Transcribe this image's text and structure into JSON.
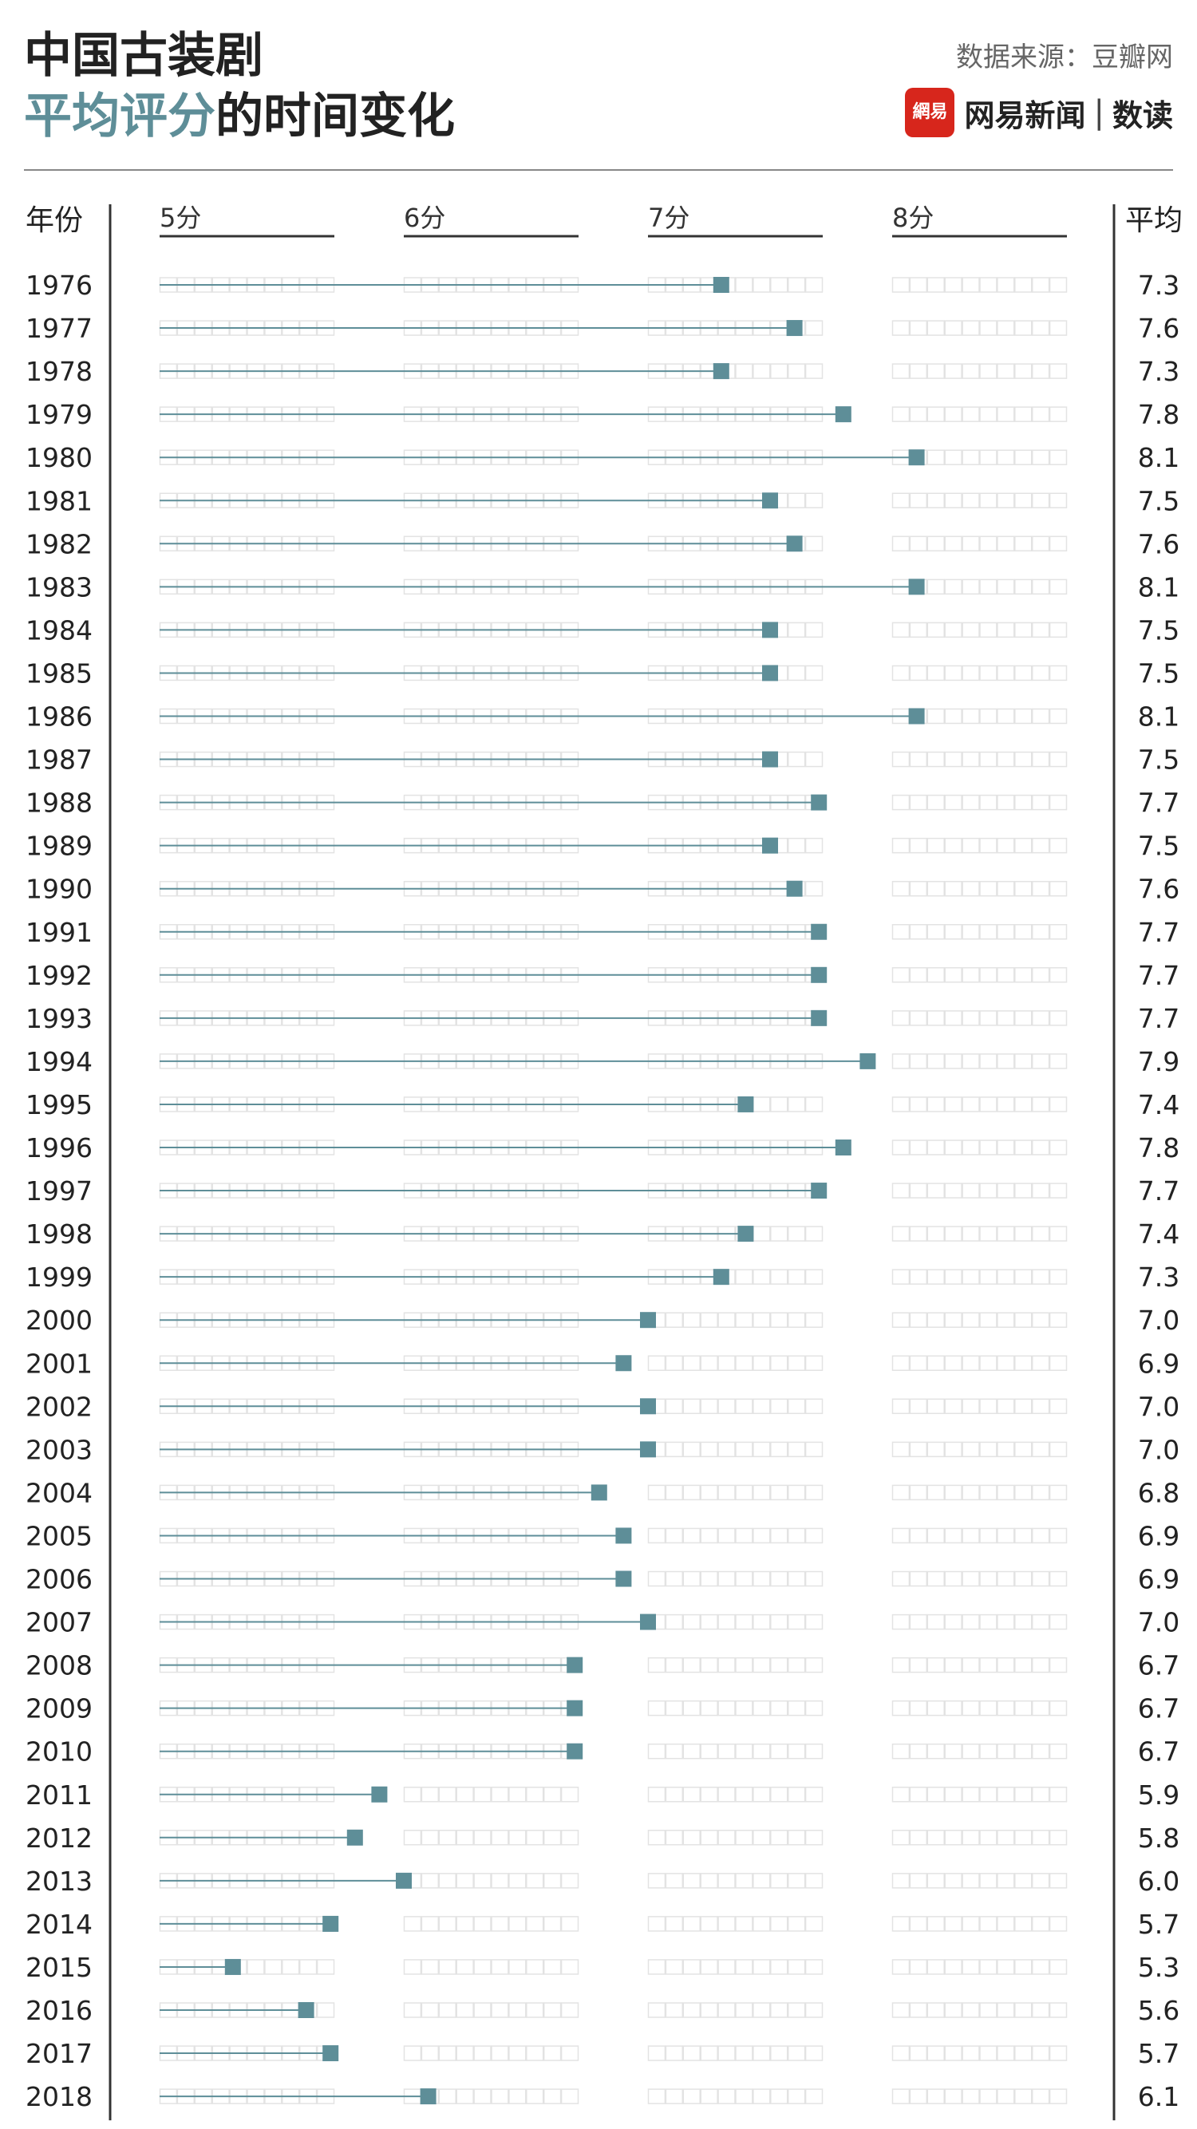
{
  "header": {
    "title_line1": "中国古装剧",
    "title_line2_accent": "平均评分",
    "title_line2_rest": "的时间变化",
    "source": "数据来源：豆瓣网",
    "brand_logo_text": "網易",
    "brand_name": "网易新闻",
    "brand_separator": "|",
    "brand_sub": "数读"
  },
  "colors": {
    "accent": "#5e8e98",
    "grid_box": "#e3e3e3",
    "axis": "#333333"
  },
  "chart_data": {
    "type": "lollipop",
    "x_min": 5,
    "x_max": 8.75,
    "column_headers": {
      "year": "年份",
      "average": "平均"
    },
    "tick_values": [
      5,
      6,
      7,
      8
    ],
    "tick_labels": [
      "5分",
      "6分",
      "7分",
      "8分"
    ],
    "rows": [
      {
        "year": "1976",
        "value": 7.3,
        "label": "7.3"
      },
      {
        "year": "1977",
        "value": 7.6,
        "label": "7.6"
      },
      {
        "year": "1978",
        "value": 7.3,
        "label": "7.3"
      },
      {
        "year": "1979",
        "value": 7.8,
        "label": "7.8"
      },
      {
        "year": "1980",
        "value": 8.1,
        "label": "8.1"
      },
      {
        "year": "1981",
        "value": 7.5,
        "label": "7.5"
      },
      {
        "year": "1982",
        "value": 7.6,
        "label": "7.6"
      },
      {
        "year": "1983",
        "value": 8.1,
        "label": "8.1"
      },
      {
        "year": "1984",
        "value": 7.5,
        "label": "7.5"
      },
      {
        "year": "1985",
        "value": 7.5,
        "label": "7.5"
      },
      {
        "year": "1986",
        "value": 8.1,
        "label": "8.1"
      },
      {
        "year": "1987",
        "value": 7.5,
        "label": "7.5"
      },
      {
        "year": "1988",
        "value": 7.7,
        "label": "7.7"
      },
      {
        "year": "1989",
        "value": 7.5,
        "label": "7.5"
      },
      {
        "year": "1990",
        "value": 7.6,
        "label": "7.6"
      },
      {
        "year": "1991",
        "value": 7.7,
        "label": "7.7"
      },
      {
        "year": "1992",
        "value": 7.7,
        "label": "7.7"
      },
      {
        "year": "1993",
        "value": 7.7,
        "label": "7.7"
      },
      {
        "year": "1994",
        "value": 7.9,
        "label": "7.9"
      },
      {
        "year": "1995",
        "value": 7.4,
        "label": "7.4"
      },
      {
        "year": "1996",
        "value": 7.8,
        "label": "7.8"
      },
      {
        "year": "1997",
        "value": 7.7,
        "label": "7.7"
      },
      {
        "year": "1998",
        "value": 7.4,
        "label": "7.4"
      },
      {
        "year": "1999",
        "value": 7.3,
        "label": "7.3"
      },
      {
        "year": "2000",
        "value": 7.0,
        "label": "7.0"
      },
      {
        "year": "2001",
        "value": 6.9,
        "label": "6.9"
      },
      {
        "year": "2002",
        "value": 7.0,
        "label": "7.0"
      },
      {
        "year": "2003",
        "value": 7.0,
        "label": "7.0"
      },
      {
        "year": "2004",
        "value": 6.8,
        "label": "6.8"
      },
      {
        "year": "2005",
        "value": 6.9,
        "label": "6.9"
      },
      {
        "year": "2006",
        "value": 6.9,
        "label": "6.9"
      },
      {
        "year": "2007",
        "value": 7.0,
        "label": "7.0"
      },
      {
        "year": "2008",
        "value": 6.7,
        "label": "6.7"
      },
      {
        "year": "2009",
        "value": 6.7,
        "label": "6.7"
      },
      {
        "year": "2010",
        "value": 6.7,
        "label": "6.7"
      },
      {
        "year": "2011",
        "value": 5.9,
        "label": "5.9"
      },
      {
        "year": "2012",
        "value": 5.8,
        "label": "5.8"
      },
      {
        "year": "2013",
        "value": 6.0,
        "label": "6.0"
      },
      {
        "year": "2014",
        "value": 5.7,
        "label": "5.7"
      },
      {
        "year": "2015",
        "value": 5.3,
        "label": "5.3"
      },
      {
        "year": "2016",
        "value": 5.6,
        "label": "5.6"
      },
      {
        "year": "2017",
        "value": 5.7,
        "label": "5.7"
      },
      {
        "year": "2018",
        "value": 6.1,
        "label": "6.1"
      }
    ]
  }
}
